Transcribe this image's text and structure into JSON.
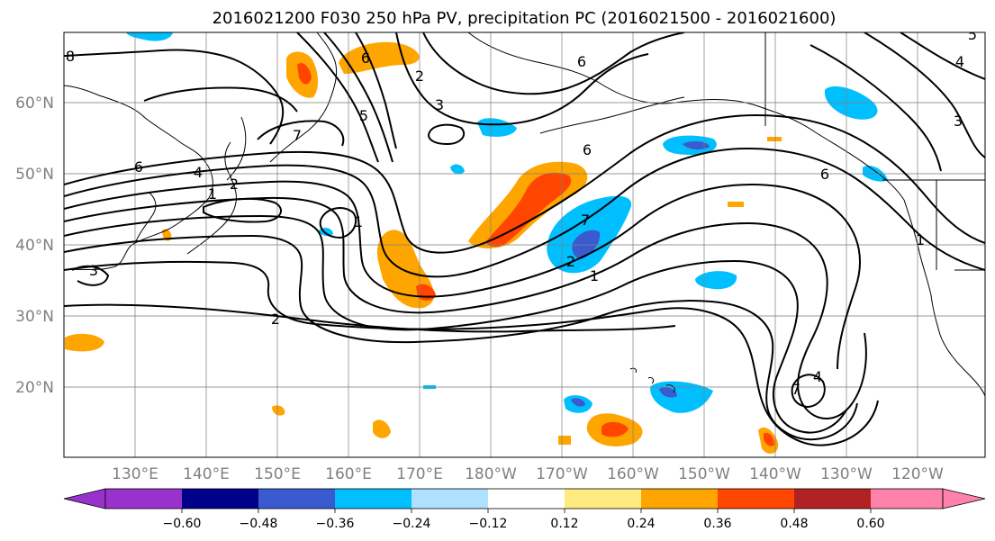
{
  "title": "2016021200 F030 250 hPa PV, precipitation PC (2016021500 - 2016021600)",
  "lat_labels": [
    "60°N",
    "50°N",
    "40°N",
    "30°N",
    "20°N"
  ],
  "lon_labels": [
    "130°E",
    "140°E",
    "150°E",
    "160°E",
    "170°E",
    "180°W",
    "170°W",
    "160°W",
    "150°W",
    "140°W",
    "130°W",
    "120°W"
  ],
  "colorbar": {
    "ticks": [
      "−0.60",
      "−0.48",
      "−0.36",
      "−0.24",
      "−0.12",
      "0.12",
      "0.24",
      "0.36",
      "0.48",
      "0.60"
    ],
    "colors": [
      "#9932cc",
      "#00008b",
      "#3a5bd0",
      "#00bfff",
      "#b0e0ff",
      "#ffffff",
      "#ffeb80",
      "#ffa500",
      "#ff4500",
      "#b22222",
      "#ff82ab"
    ]
  },
  "contour_labels": [
    {
      "text": "8"
    },
    {
      "text": "2"
    },
    {
      "text": "3"
    },
    {
      "text": "7"
    },
    {
      "text": "6"
    },
    {
      "text": "6"
    },
    {
      "text": "4"
    },
    {
      "text": "1"
    },
    {
      "text": "2"
    },
    {
      "text": "1"
    },
    {
      "text": "2"
    },
    {
      "text": "3"
    },
    {
      "text": "7"
    },
    {
      "text": "2"
    },
    {
      "text": "1"
    },
    {
      "text": "6"
    },
    {
      "text": "1"
    },
    {
      "text": "3"
    },
    {
      "text": "4"
    },
    {
      "text": "6"
    },
    {
      "text": "5"
    },
    {
      "text": "4"
    },
    {
      "text": "7"
    },
    {
      "text": "5"
    },
    {
      "text": "6"
    }
  ]
}
